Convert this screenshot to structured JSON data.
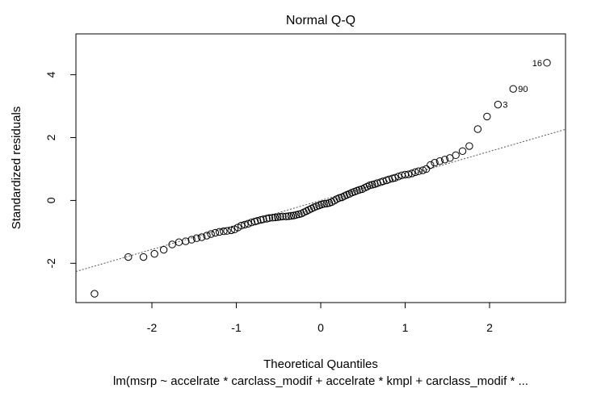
{
  "chart_data": {
    "type": "scatter",
    "title": "Normal Q-Q",
    "xlabel": "Theoretical Quantiles",
    "ylabel": "Standardized residuals",
    "subtitle": "lm(msrp ~ accelrate * carclass_modif + accelrate * kmpl + carclass_modif *  ...",
    "xlim": [
      -2.9,
      2.9
    ],
    "ylim": [
      -3.25,
      5.3
    ],
    "x_ticks": [
      -2,
      -1,
      0,
      1,
      2
    ],
    "y_ticks": [
      -2,
      0,
      2,
      4
    ],
    "grid": false,
    "reference_line": {
      "style": "dotted",
      "slope": 0.78,
      "intercept": 0.0
    },
    "labeled_points": [
      {
        "label": "16",
        "x": 2.68,
        "y": 4.38
      },
      {
        "label": "90",
        "x": 2.28,
        "y": 3.55
      },
      {
        "label": "3",
        "x": 2.1,
        "y": 3.05
      }
    ],
    "points": [
      [
        -2.68,
        -2.97
      ],
      [
        -2.28,
        -1.8
      ],
      [
        -2.1,
        -1.8
      ],
      [
        -1.97,
        -1.7
      ],
      [
        -1.86,
        -1.57
      ],
      [
        -1.76,
        -1.4
      ],
      [
        -1.68,
        -1.33
      ],
      [
        -1.6,
        -1.3
      ],
      [
        -1.53,
        -1.25
      ],
      [
        -1.47,
        -1.2
      ],
      [
        -1.41,
        -1.17
      ],
      [
        -1.35,
        -1.12
      ],
      [
        -1.3,
        -1.07
      ],
      [
        -1.25,
        -1.03
      ],
      [
        -1.2,
        -1.0
      ],
      [
        -1.15,
        -0.98
      ],
      [
        -1.11,
        -0.97
      ],
      [
        -1.06,
        -0.95
      ],
      [
        -1.02,
        -0.92
      ],
      [
        -0.98,
        -0.86
      ],
      [
        -0.94,
        -0.8
      ],
      [
        -0.9,
        -0.77
      ],
      [
        -0.86,
        -0.74
      ],
      [
        -0.82,
        -0.7
      ],
      [
        -0.78,
        -0.67
      ],
      [
        -0.75,
        -0.65
      ],
      [
        -0.71,
        -0.62
      ],
      [
        -0.68,
        -0.6
      ],
      [
        -0.64,
        -0.58
      ],
      [
        -0.61,
        -0.56
      ],
      [
        -0.57,
        -0.55
      ],
      [
        -0.54,
        -0.54
      ],
      [
        -0.51,
        -0.53
      ],
      [
        -0.48,
        -0.52
      ],
      [
        -0.45,
        -0.51
      ],
      [
        -0.41,
        -0.51
      ],
      [
        -0.38,
        -0.5
      ],
      [
        -0.35,
        -0.49
      ],
      [
        -0.32,
        -0.48
      ],
      [
        -0.29,
        -0.46
      ],
      [
        -0.26,
        -0.44
      ],
      [
        -0.23,
        -0.42
      ],
      [
        -0.2,
        -0.38
      ],
      [
        -0.17,
        -0.34
      ],
      [
        -0.14,
        -0.3
      ],
      [
        -0.11,
        -0.26
      ],
      [
        -0.08,
        -0.22
      ],
      [
        -0.05,
        -0.19
      ],
      [
        -0.02,
        -0.16
      ],
      [
        0.01,
        -0.13
      ],
      [
        0.04,
        -0.11
      ],
      [
        0.07,
        -0.1
      ],
      [
        0.1,
        -0.08
      ],
      [
        0.13,
        -0.05
      ],
      [
        0.16,
        -0.01
      ],
      [
        0.19,
        0.04
      ],
      [
        0.22,
        0.08
      ],
      [
        0.25,
        0.1
      ],
      [
        0.28,
        0.14
      ],
      [
        0.31,
        0.18
      ],
      [
        0.34,
        0.21
      ],
      [
        0.37,
        0.25
      ],
      [
        0.4,
        0.28
      ],
      [
        0.43,
        0.31
      ],
      [
        0.46,
        0.34
      ],
      [
        0.49,
        0.36
      ],
      [
        0.52,
        0.4
      ],
      [
        0.55,
        0.44
      ],
      [
        0.58,
        0.48
      ],
      [
        0.61,
        0.5
      ],
      [
        0.64,
        0.52
      ],
      [
        0.67,
        0.55
      ],
      [
        0.71,
        0.58
      ],
      [
        0.74,
        0.61
      ],
      [
        0.78,
        0.64
      ],
      [
        0.81,
        0.67
      ],
      [
        0.85,
        0.7
      ],
      [
        0.88,
        0.72
      ],
      [
        0.92,
        0.76
      ],
      [
        0.96,
        0.8
      ],
      [
        1.0,
        0.82
      ],
      [
        1.04,
        0.83
      ],
      [
        1.08,
        0.86
      ],
      [
        1.12,
        0.9
      ],
      [
        1.16,
        0.93
      ],
      [
        1.21,
        0.96
      ],
      [
        1.25,
        1.0
      ],
      [
        1.3,
        1.13
      ],
      [
        1.35,
        1.2
      ],
      [
        1.41,
        1.25
      ],
      [
        1.47,
        1.3
      ],
      [
        1.53,
        1.35
      ],
      [
        1.6,
        1.44
      ],
      [
        1.68,
        1.57
      ],
      [
        1.76,
        1.73
      ],
      [
        1.86,
        2.27
      ],
      [
        1.97,
        2.67
      ],
      [
        2.1,
        3.05
      ],
      [
        2.28,
        3.55
      ],
      [
        2.68,
        4.38
      ]
    ]
  }
}
